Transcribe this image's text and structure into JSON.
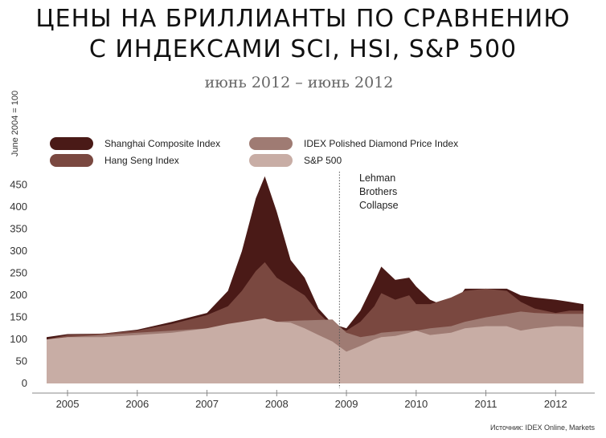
{
  "title_line1": "ЦЕНЫ НА БРИЛЛИАНТЫ ПО СРАВНЕНИЮ",
  "title_line2": "С ИНДЕКСАМИ SCI, HSI, S&P 500",
  "subtitle": "июнь 2012 – июнь 2012",
  "source": "Источник: IDEX Online, Markets",
  "colors": {
    "shanghai": "#4a1a17",
    "hangseng": "#7a4840",
    "idex": "#9f7b73",
    "sp500": "#c8ada5",
    "axis_text": "#333333"
  },
  "chart_data": {
    "type": "area",
    "title": "ЦЕНЫ НА БРИЛЛИАНТЫ ПО СРАВНЕНИЮ С ИНДЕКСАМИ SCI, HSI, S&P 500",
    "subtitle": "июнь 2012 – июнь 2012",
    "ylabel": "June 2004 = 100",
    "xlabel": "",
    "xlim": [
      2004.7,
      2012.4
    ],
    "ylim": [
      0,
      475
    ],
    "x_ticks": [
      2005,
      2006,
      2007,
      2008,
      2009,
      2010,
      2011,
      2012
    ],
    "x_tick_labels": [
      "2005",
      "2006",
      "2007",
      "2008",
      "2009",
      "2010",
      "2011",
      "2012"
    ],
    "y_ticks": [
      0,
      50,
      100,
      150,
      200,
      250,
      300,
      350,
      400,
      450
    ],
    "y_tick_labels": [
      "0",
      "50",
      "100",
      "150",
      "200",
      "250",
      "300",
      "350",
      "400",
      "450"
    ],
    "grid": false,
    "legend_placement": "top-left",
    "legend": [
      "Shanghai Composite Index",
      "Hang Seng Index",
      "IDEX Polished Diamond Price Index",
      "S&P 500"
    ],
    "annotation": {
      "x": 2008.9,
      "lines": [
        "Lehman",
        "Brothers",
        "Collapse"
      ]
    },
    "x": [
      2004.7,
      2005.0,
      2005.5,
      2006.0,
      2006.5,
      2007.0,
      2007.3,
      2007.5,
      2007.7,
      2007.83,
      2008.0,
      2008.2,
      2008.4,
      2008.6,
      2008.8,
      2009.0,
      2009.2,
      2009.4,
      2009.5,
      2009.7,
      2009.9,
      2010.0,
      2010.2,
      2010.5,
      2010.7,
      2011.0,
      2011.3,
      2011.5,
      2011.7,
      2012.0,
      2012.2,
      2012.4
    ],
    "series": [
      {
        "name": "Shanghai Composite Index",
        "values": [
          105,
          112,
          113,
          122,
          140,
          160,
          210,
          300,
          420,
          470,
          390,
          280,
          240,
          170,
          135,
          125,
          165,
          230,
          265,
          235,
          240,
          220,
          190,
          170,
          215,
          215,
          215,
          200,
          195,
          190,
          185,
          180
        ]
      },
      {
        "name": "Hang Seng Index",
        "values": [
          100,
          110,
          113,
          120,
          135,
          155,
          175,
          210,
          255,
          275,
          240,
          220,
          200,
          160,
          130,
          120,
          140,
          175,
          205,
          190,
          200,
          180,
          180,
          195,
          210,
          215,
          210,
          185,
          170,
          160,
          165,
          165
        ]
      },
      {
        "name": "IDEX Polished Diamond Price Index",
        "values": [
          100,
          105,
          110,
          115,
          120,
          125,
          130,
          135,
          140,
          140,
          140,
          142,
          143,
          144,
          145,
          115,
          105,
          110,
          115,
          118,
          120,
          120,
          125,
          130,
          140,
          150,
          158,
          163,
          160,
          158,
          158,
          158
        ]
      },
      {
        "name": "S&P 500",
        "values": [
          100,
          105,
          105,
          110,
          115,
          125,
          135,
          140,
          145,
          148,
          140,
          138,
          125,
          110,
          95,
          72,
          85,
          100,
          105,
          108,
          115,
          120,
          110,
          115,
          125,
          130,
          130,
          120,
          125,
          130,
          130,
          128
        ]
      }
    ]
  }
}
